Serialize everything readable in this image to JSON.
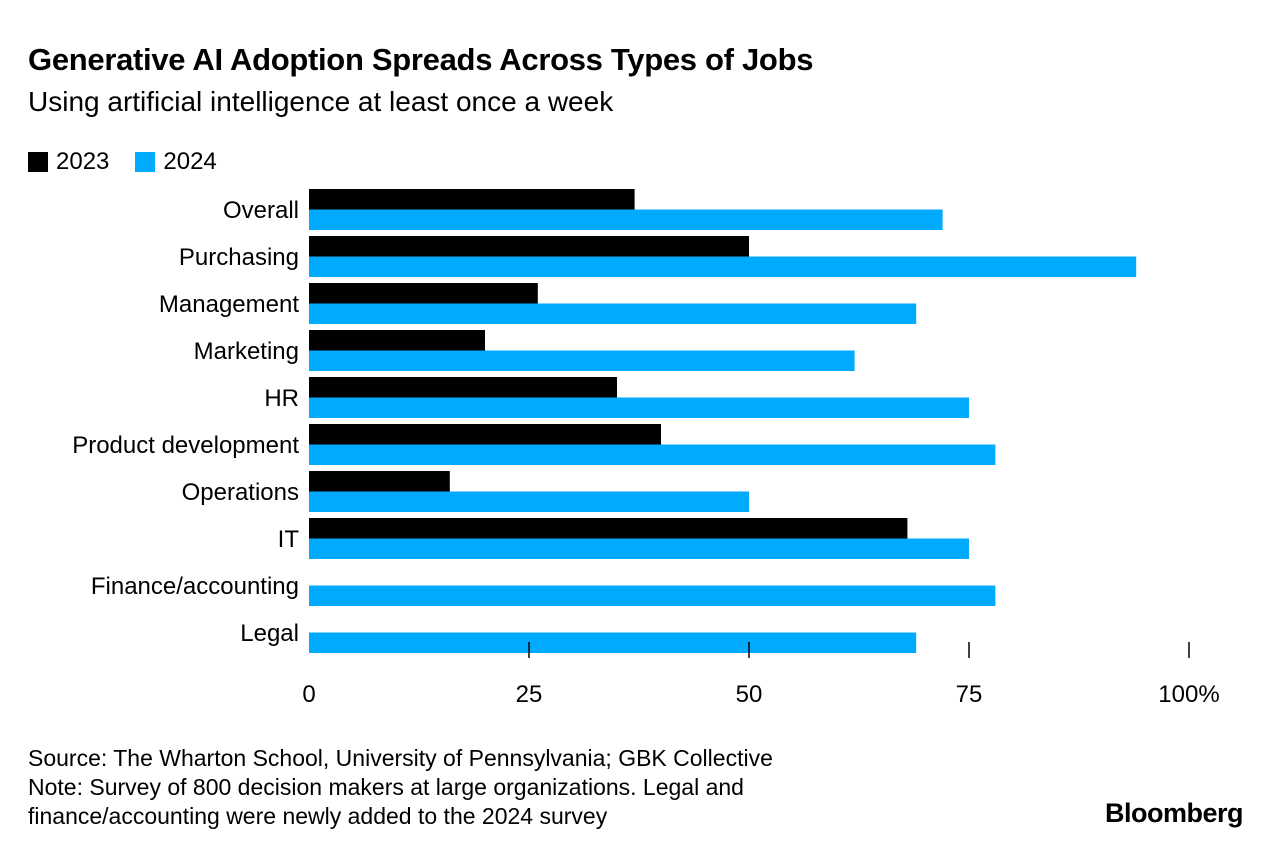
{
  "chart_data": {
    "type": "bar",
    "orientation": "horizontal",
    "title": "Generative AI Adoption Spreads Across Types of Jobs",
    "subtitle": "Using artificial intelligence at least once a week",
    "categories": [
      "Overall",
      "Purchasing",
      "Management",
      "Marketing",
      "HR",
      "Product development",
      "Operations",
      "IT",
      "Finance/accounting",
      "Legal"
    ],
    "series": [
      {
        "name": "2023",
        "color": "#000000",
        "values": [
          37,
          50,
          26,
          20,
          35,
          40,
          16,
          68,
          null,
          null
        ]
      },
      {
        "name": "2024",
        "color": "#00aaff",
        "values": [
          72,
          94,
          69,
          62,
          75,
          78,
          50,
          75,
          78,
          69
        ]
      }
    ],
    "xlim": [
      0,
      100
    ],
    "xticks": [
      0,
      25,
      50,
      75,
      100
    ],
    "xtick_labels": [
      "0",
      "25",
      "50",
      "75",
      "100%"
    ],
    "xlabel": "",
    "ylabel": "",
    "legend_position": "top-left",
    "grid": false
  },
  "footer": {
    "source": "Source: The Wharton School, University of Pennsylvania; GBK Collective",
    "note_line1": "Note: Survey of 800 decision makers at large organizations. Legal and",
    "note_line2": "finance/accounting were newly added to the 2024 survey"
  },
  "brand": "Bloomberg"
}
